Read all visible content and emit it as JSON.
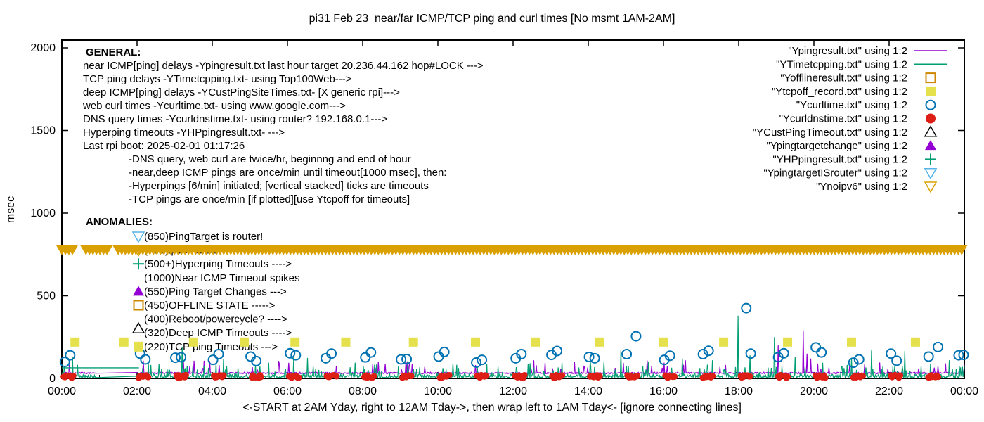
{
  "title": "pi31 Feb 23  near/far ICMP/TCP ping and curl times [No msmt 1AM-2AM]",
  "axes": {
    "ylabel": "msec",
    "xlabel": "<-START at 2AM Yday, right to 12AM Tday->, then wrap left to 1AM Tday<- [ignore connecting lines]",
    "ylim": [
      0,
      2000
    ],
    "yticks": [
      0,
      500,
      1000,
      1500,
      2000
    ],
    "xtick_labels": [
      "00:00",
      "02:00",
      "04:00",
      "06:00",
      "08:00",
      "10:00",
      "12:00",
      "14:00",
      "16:00",
      "18:00",
      "20:00",
      "22:00",
      "00:00"
    ],
    "xlim_hours": [
      0,
      24
    ]
  },
  "general": {
    "heading": "GENERAL:",
    "lines": [
      "near ICMP[ping] delays -Ypingresult.txt last hour target 20.236.44.162 hop#LOCK --->",
      "TCP ping delays -YTimetcpping.txt- using Top100Web--->",
      "deep ICMP[ping] delays -YCustPingSiteTimes.txt- [X generic rpi]--->",
      "web curl times -Ycurltime.txt- using www.google.com--->",
      "DNS query times -Ycurldnstime.txt- using router? 192.168.0.1--->",
      "Hyperping timeouts -YHPpingresult.txt- --->",
      "Last rpi boot: 2025-02-01 01:17:26"
    ],
    "indented_lines": [
      "-DNS query, web curl are twice/hr, beginnng and end of hour",
      "-near,deep ICMP pings are once/min until timeout[1000 msec], then:",
      " -Hyperpings [6/min] initiated; [vertical stacked] ticks are timeouts",
      "-TCP pings are once/min [if plotted][use Ytcpoff for timeouts]"
    ]
  },
  "anomalies": {
    "heading": "ANOMALIES:",
    "entries": [
      {
        "style": "tri-down-open",
        "color": "#56b4e9",
        "text": "(850)PingTarget is router!"
      },
      {
        "style": "tri-down-open",
        "color": "#daa000",
        "text": "(775)ipv6 failed --->"
      },
      {
        "style": "plus",
        "color": "#009e73",
        "text": "(500+)Hyperping Timeouts ---->"
      },
      {
        "style": null,
        "color": null,
        "text": "(1000)Near ICMP Timeout spikes"
      },
      {
        "style": "triangle-filled",
        "color": "#9400d3",
        "text": "(550)Ping Target Changes --->"
      },
      {
        "style": "square-open",
        "color": "#cc8800",
        "text": "(450)OFFLINE STATE ----->"
      },
      {
        "style": null,
        "color": null,
        "text": "(400)Reboot/powercycle? ---->"
      },
      {
        "style": "triangle-open",
        "color": "#000000",
        "text": "(320)Deep ICMP Timeouts ---->"
      },
      {
        "style": "square-filled",
        "color": "#e5e14c",
        "text": "(220)TCP ping Timeouts --->"
      }
    ]
  },
  "chart_data": {
    "type": "line+scatter",
    "title": "pi31 Feb 23  near/far ICMP/TCP ping and curl times [No msmt 1AM-2AM]",
    "xlabel": "<-START at 2AM Yday, right to 12AM Tday->, then wrap left to 1AM Tday<- [ignore connecting lines]",
    "ylabel": "msec",
    "ylim": [
      0,
      2000
    ],
    "yticks": [
      0,
      500,
      1000,
      1500,
      2000
    ],
    "xtick_labels": [
      "00:00",
      "02:00",
      "04:00",
      "06:00",
      "08:00",
      "10:00",
      "12:00",
      "14:00",
      "16:00",
      "18:00",
      "20:00",
      "22:00",
      "00:00"
    ],
    "grid": false,
    "legend_position": "top-right-inside",
    "no_measurement_window_hours": [
      1,
      2
    ],
    "series": [
      {
        "label": "\"Ypingresult.txt\" using 1:2",
        "style": "line",
        "color": "#9400d3",
        "baseline_msec": 30,
        "spikes": [
          [
            3.75,
            60
          ],
          [
            8.6,
            88
          ],
          [
            12.55,
            110
          ],
          [
            13.9,
            70
          ],
          [
            16.1,
            72
          ],
          [
            17.5,
            70
          ],
          [
            19.05,
            200
          ],
          [
            19.72,
            290
          ],
          [
            19.82,
            150
          ],
          [
            19.92,
            120
          ],
          [
            20.1,
            90
          ],
          [
            21.35,
            85
          ],
          [
            23.2,
            65
          ]
        ]
      },
      {
        "label": "\"YTimetcpping.txt\" using 1:2",
        "style": "line",
        "color": "#009e73",
        "baseline_msec": 20,
        "spikes": [
          [
            0.28,
            132
          ],
          [
            2.3,
            90
          ],
          [
            3.2,
            192
          ],
          [
            4.3,
            118
          ],
          [
            5.5,
            95
          ],
          [
            6.17,
            135
          ],
          [
            6.53,
            124
          ],
          [
            7.8,
            95
          ],
          [
            9.2,
            105
          ],
          [
            10.4,
            90
          ],
          [
            11.3,
            85
          ],
          [
            12.4,
            88
          ],
          [
            13.3,
            95
          ],
          [
            14.05,
            110
          ],
          [
            14.86,
            170
          ],
          [
            15.6,
            100
          ],
          [
            16.5,
            120
          ],
          [
            17.3,
            110
          ],
          [
            17.98,
            380
          ],
          [
            18.3,
            140
          ],
          [
            18.95,
            250
          ],
          [
            19.5,
            130
          ],
          [
            20.24,
            95
          ],
          [
            21.0,
            120
          ],
          [
            21.53,
            170
          ],
          [
            22.41,
            165
          ],
          [
            23.1,
            90
          ],
          [
            23.6,
            110
          ]
        ],
        "flat_segment": {
          "hours": [
            0,
            2.05
          ],
          "value": 64
        }
      },
      {
        "label": "\"Yofflineresult.txt\" using 1:2",
        "style": "square-open",
        "color": "#cc8800",
        "points": []
      },
      {
        "label": "\"Ytcpoff_record.txt\" using 1:2",
        "style": "square-filled",
        "color": "#e5e14c",
        "points": [
          [
            0.35,
            220
          ],
          [
            1.65,
            220
          ],
          [
            3.5,
            220
          ],
          [
            4.85,
            220
          ],
          [
            6.2,
            220
          ],
          [
            7.55,
            220
          ],
          [
            9.35,
            220
          ],
          [
            11.0,
            220
          ],
          [
            12.6,
            220
          ],
          [
            14.3,
            220
          ],
          [
            16.0,
            220
          ],
          [
            17.6,
            220
          ],
          [
            19.3,
            220
          ],
          [
            21.0,
            220
          ],
          [
            22.7,
            220
          ]
        ]
      },
      {
        "label": "\"Ycurltime.txt\" using 1:2",
        "style": "circle-open",
        "color": "#0072b2",
        "points": [
          [
            0.08,
            100
          ],
          [
            0.22,
            140
          ],
          [
            2.08,
            150
          ],
          [
            2.22,
            115
          ],
          [
            3.02,
            125
          ],
          [
            3.17,
            128
          ],
          [
            4.02,
            112
          ],
          [
            4.17,
            147
          ],
          [
            5.02,
            132
          ],
          [
            5.17,
            105
          ],
          [
            6.07,
            152
          ],
          [
            6.22,
            140
          ],
          [
            7.02,
            122
          ],
          [
            7.17,
            150
          ],
          [
            8.07,
            127
          ],
          [
            8.22,
            157
          ],
          [
            9.02,
            115
          ],
          [
            9.17,
            117
          ],
          [
            10.02,
            132
          ],
          [
            10.17,
            160
          ],
          [
            11.02,
            96
          ],
          [
            11.17,
            112
          ],
          [
            12.07,
            122
          ],
          [
            12.22,
            147
          ],
          [
            13.02,
            142
          ],
          [
            13.17,
            166
          ],
          [
            14.02,
            130
          ],
          [
            14.17,
            122
          ],
          [
            15.02,
            147
          ],
          [
            15.27,
            255
          ],
          [
            16.02,
            112
          ],
          [
            16.17,
            137
          ],
          [
            17.05,
            147
          ],
          [
            17.2,
            167
          ],
          [
            18.2,
            425
          ],
          [
            18.32,
            150
          ],
          [
            19.05,
            128
          ],
          [
            19.2,
            152
          ],
          [
            20.05,
            188
          ],
          [
            20.2,
            157
          ],
          [
            21.05,
            95
          ],
          [
            21.2,
            115
          ],
          [
            22.05,
            150
          ],
          [
            22.2,
            107
          ],
          [
            23.05,
            132
          ],
          [
            23.3,
            190
          ],
          [
            23.85,
            140
          ],
          [
            23.98,
            142
          ]
        ]
      },
      {
        "label": "\"Ycurldnstime.txt\" using 1:2",
        "style": "circle-filled",
        "color": "#dd1e14",
        "cluster_hours": [
          0,
          2,
          3,
          4,
          5,
          6,
          7,
          8,
          9,
          10,
          11,
          12,
          13,
          14,
          15,
          16,
          17,
          18,
          19,
          20,
          21,
          22,
          23
        ],
        "cluster_value_range": [
          3,
          20
        ]
      },
      {
        "label": "\"YCustPingTimeout.txt\" using 1:2",
        "style": "triangle-open",
        "color": "#000000",
        "points": []
      },
      {
        "label": "\"Ypingtargetchange\" using 1:2",
        "style": "triangle-filled",
        "color": "#9400d3",
        "points": []
      },
      {
        "label": "\"YHPpingresult.txt\" using 1:2",
        "style": "plus",
        "color": "#009e73",
        "points": []
      },
      {
        "label": "\"YpingtargetISrouter\" using 1:2",
        "style": "tri-down-open",
        "color": "#56b4e9",
        "points": []
      },
      {
        "label": "\"Ynoipv6\" using 1:2",
        "style": "tri-down-open",
        "color": "#daa000",
        "band": {
          "value": 775,
          "segments_hours": [
            [
              0,
              0.36
            ],
            [
              0.64,
              1.25
            ],
            [
              1.5,
              24
            ]
          ]
        }
      }
    ]
  }
}
